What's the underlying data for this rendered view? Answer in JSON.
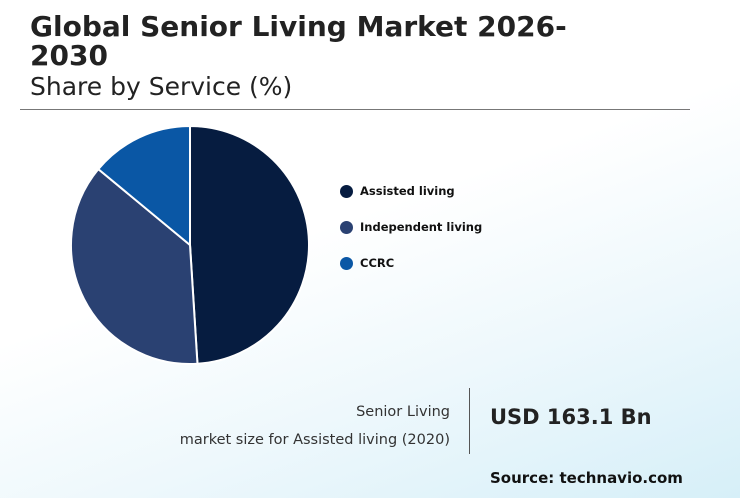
{
  "header": {
    "title": "Global Senior Living Market 2026-2030",
    "subtitle": "Share by Service (%)"
  },
  "chart_data": {
    "type": "pie",
    "categories": [
      "Assisted living",
      "Independent living",
      "CCRC"
    ],
    "values": [
      49,
      37,
      14
    ],
    "colors": [
      "#061c40",
      "#2a4172",
      "#0a57a5"
    ],
    "legend_position": "right"
  },
  "footer": {
    "market_label_line1": "Senior Living",
    "market_label_line2": "market size for Assisted living (2020)",
    "market_value": "USD 163.1 Bn",
    "source": "Source: technavio.com"
  }
}
